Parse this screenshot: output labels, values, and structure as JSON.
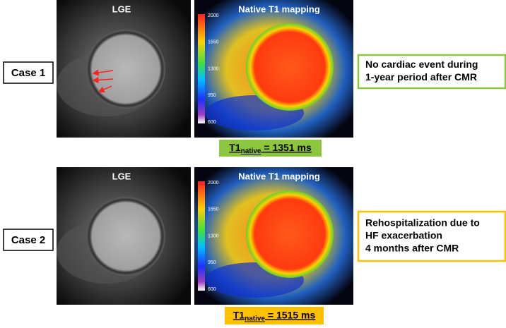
{
  "cases": [
    {
      "label": "Case 1",
      "lge_title": "LGE",
      "t1_title": "Native T1 mapping",
      "colorbar_ticks": [
        2000,
        1650,
        1300,
        950,
        600
      ],
      "t1": {
        "symbol": "T1",
        "subscript": "native",
        "value": " = 1351 ms"
      },
      "accent_color": "#8cc63f",
      "outcome": [
        "No cardiac event during",
        "1-year period after CMR"
      ]
    },
    {
      "label": "Case 2",
      "lge_title": "LGE",
      "t1_title": "Native T1 mapping",
      "colorbar_ticks": [
        2000,
        1650,
        1300,
        950,
        600
      ],
      "t1": {
        "symbol": "T1",
        "subscript": "native",
        "value": " = 1515 ms"
      },
      "accent_color": "#ffc000",
      "outcome": [
        "Rehospitalization due to",
        "HF exacerbation",
        "4 months after CMR"
      ]
    }
  ]
}
